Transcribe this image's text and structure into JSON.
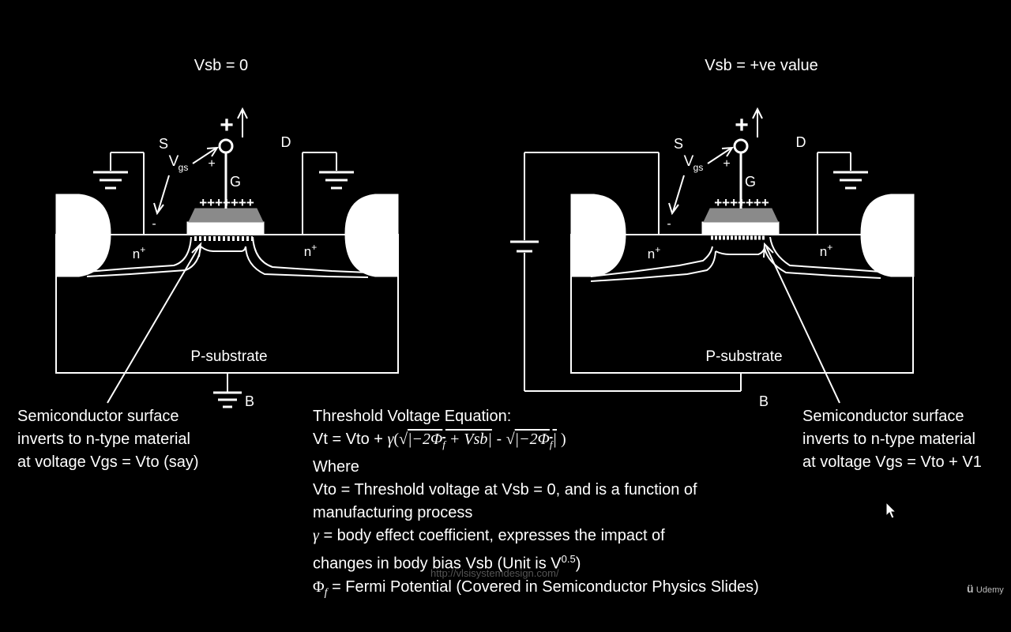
{
  "left_diagram": {
    "title": "Vsb = 0",
    "source": "S",
    "drain": "D",
    "gate": "G",
    "vgs_main": "V",
    "vgs_sub": "gs",
    "plus_big": "+",
    "plus_small": "+",
    "minus": "-",
    "gate_charges": "+++++++",
    "n_left_main": "n",
    "n_left_sup": "+",
    "n_right_main": "n",
    "n_right_sup": "+",
    "substrate": "P-substrate",
    "body": "B",
    "caption": [
      "Semiconductor surface",
      "inverts to n-type material",
      "at voltage Vgs = Vto (say)"
    ]
  },
  "right_diagram": {
    "title": "Vsb = +ve value",
    "source": "S",
    "drain": "D",
    "gate": "G",
    "vgs_main": "V",
    "vgs_sub": "gs",
    "plus_big": "+",
    "plus_small": "+",
    "minus": "-",
    "gate_charges": "+++++++",
    "n_left_main": "n",
    "n_left_sup": "+",
    "n_right_main": "n",
    "n_right_sup": "+",
    "substrate": "P-substrate",
    "body": "B",
    "caption": [
      "Semiconductor surface",
      "inverts to n-type material",
      "at voltage Vgs = Vto + V1"
    ]
  },
  "equation": {
    "heading": "Threshold Voltage Equation:",
    "lhs": "Vt = Vto + ",
    "gamma": "γ",
    "open_paren": "(",
    "rad1": "|−2Φ",
    "rad1_sub": "f",
    "rad1_rest": " + Vsb|",
    "between": " - ",
    "rad2": "|−2Φ",
    "rad2_sub": "f",
    "rad2_rest": "|",
    "close_paren": " )",
    "sqrt_sign": "√",
    "where": "Where",
    "vto_line1": "Vto = Threshold voltage at Vsb = 0, and is a function of",
    "vto_line2": "manufacturing process",
    "gamma_line1": " = body effect coefficient, expresses the impact of",
    "gamma_line2_pre": "changes in body bias Vsb (Unit is V",
    "gamma_line2_sup": "0.5",
    "gamma_line2_post": ")",
    "phi_symbol": "Φ",
    "phi_sub": "f",
    "phi_line": " = Fermi Potential (Covered in Semiconductor Physics Slides)"
  },
  "watermark": "http://vlsisystemdesign.com/",
  "logo": "Udemy"
}
